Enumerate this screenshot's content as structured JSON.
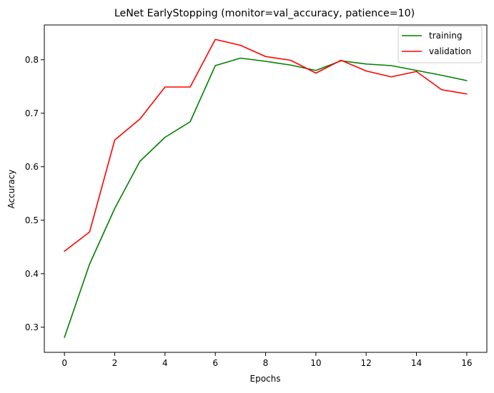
{
  "chart_data": {
    "type": "line",
    "title": "LeNet EarlyStopping (monitor=val_accuracy, patience=10)",
    "xlabel": "Epochs",
    "ylabel": "Accuracy",
    "xlim": [
      -0.8,
      16.8
    ],
    "ylim": [
      0.253,
      0.865
    ],
    "xticks": [
      0,
      2,
      4,
      6,
      8,
      10,
      12,
      14,
      16
    ],
    "yticks": [
      0.3,
      0.4,
      0.5,
      0.6,
      0.7,
      0.8
    ],
    "xtick_labels": [
      "0",
      "2",
      "4",
      "6",
      "8",
      "10",
      "12",
      "14",
      "16"
    ],
    "ytick_labels": [
      "0.3",
      "0.4",
      "0.5",
      "0.6",
      "0.7",
      "0.8"
    ],
    "x": [
      0,
      1,
      2,
      3,
      4,
      5,
      6,
      7,
      8,
      9,
      10,
      11,
      12,
      13,
      14,
      15,
      16
    ],
    "series": [
      {
        "name": "training",
        "color": "#008000",
        "values": [
          0.281,
          0.418,
          0.522,
          0.61,
          0.655,
          0.684,
          0.789,
          0.803,
          0.797,
          0.79,
          0.78,
          0.798,
          0.792,
          0.789,
          0.78,
          0.771,
          0.761
        ]
      },
      {
        "name": "validation",
        "color": "#ff0000",
        "values": [
          0.442,
          0.478,
          0.65,
          0.689,
          0.749,
          0.749,
          0.838,
          0.827,
          0.806,
          0.799,
          0.775,
          0.799,
          0.779,
          0.768,
          0.778,
          0.744,
          0.736
        ]
      }
    ],
    "grid": false,
    "legend_position": "upper right"
  }
}
